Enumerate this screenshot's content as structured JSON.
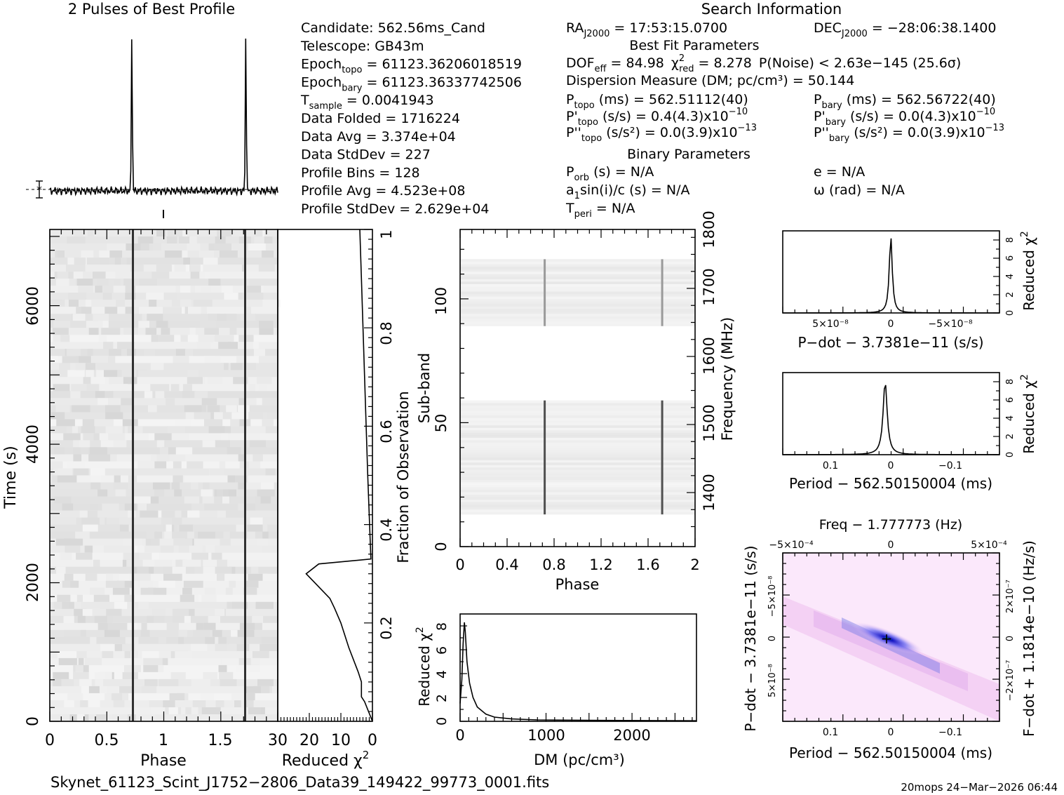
{
  "profile": {
    "title": "2 Pulses of Best Profile",
    "series": {
      "name": "profile",
      "phase": [
        0,
        0.1,
        0.2,
        0.3,
        0.4,
        0.5,
        0.6,
        0.7,
        0.72,
        0.74,
        0.8,
        0.9,
        1.0,
        1.1,
        1.2,
        1.3,
        1.4,
        1.5,
        1.6,
        1.7,
        1.72,
        1.74,
        1.8,
        1.9,
        2.0
      ],
      "rel_amplitude": [
        0.02,
        0.03,
        0.02,
        0.03,
        0.02,
        0.03,
        0.02,
        0.05,
        1.0,
        0.05,
        0.02,
        0.03,
        0.02,
        0.03,
        0.02,
        0.03,
        0.02,
        0.03,
        0.02,
        0.05,
        1.0,
        0.05,
        0.02,
        0.03,
        0.02
      ]
    },
    "pulse_phases": [
      0.72,
      1.72
    ]
  },
  "search_info": {
    "title": "Search Information",
    "col1": [
      [
        "Candidate:  562.56ms_Cand"
      ],
      [
        "Telescope:  GB43m"
      ],
      [
        "Epoch",
        "topo",
        " = 61123.36206018519"
      ],
      [
        "Epoch",
        "bary",
        " = 61123.36337742506"
      ],
      [
        "T",
        "sample",
        "      =  0.0041943"
      ],
      [
        "Data Folded     =  1716224"
      ],
      [
        "Data Avg        =  3.374e+04"
      ],
      [
        "Data StdDev     =  227"
      ],
      [
        "Profile Bins    =  128"
      ],
      [
        "Profile Avg     =  4.523e+08"
      ],
      [
        "Profile StdDev  =  2.629e+04"
      ]
    ],
    "ra": {
      "label": "RA",
      "sub": "J2000",
      "value": " = 17:53:15.0700"
    },
    "dec": {
      "label": "DEC",
      "sub": "J2000",
      "value": " = −28:06:38.1400"
    },
    "best_fit_title": "Best Fit Parameters",
    "dof": {
      "label": "DOF",
      "sub": "eff",
      "value": " = 84.98",
      "chi_label": "χ",
      "chi_sup": "2",
      "chi_sub": "red",
      "chi_value": " = 8.278",
      "pnoise": "P(Noise) < 2.63e−145   (25.6σ)"
    },
    "dm_line": "Dispersion Measure (DM; pc/cm³) = 50.144",
    "ptopo": {
      "label": "P",
      "sub": "topo",
      "value": " (ms) =  562.51112(40)"
    },
    "pbary": {
      "label": "P",
      "sub": "bary",
      "value": " (ms) =  562.56722(40)"
    },
    "pdtopo": {
      "label": "P'",
      "sub": "topo",
      "value": " (s/s) =  0.4(4.3)x10",
      "exp": "−10"
    },
    "pdbary": {
      "label": "P'",
      "sub": "bary",
      "value": " (s/s) = 0.0(4.3)x10",
      "exp": "−10"
    },
    "pddtopo": {
      "label": "P''",
      "sub": "topo",
      "value": " (s/s²) = 0.0(3.9)x10",
      "exp": "−13"
    },
    "pddbary": {
      "label": "P''",
      "sub": "bary",
      "value": " (s/s²) = 0.0(3.9)x10",
      "exp": "−13"
    },
    "binary_title": "Binary Parameters",
    "porb": {
      "label": "P",
      "sub": "orb",
      "value": " (s) = N/A"
    },
    "asini": {
      "label": "a",
      "sub": "1",
      "value": "sin(i)/c (s) = N/A"
    },
    "tperi": {
      "label": "T",
      "sub": "peri",
      "value": " = N/A"
    },
    "ecc": "e = N/A",
    "omega": "ω (rad) = N/A"
  },
  "time_phase": {
    "xlabel": "Phase",
    "ylabel": "Time (s)",
    "xticks": [
      "0",
      "0.5",
      "1",
      "1.5"
    ],
    "yticks": [
      "0",
      "2000",
      "4000",
      "6000"
    ],
    "xlim": [
      0,
      2
    ],
    "ylim": [
      0,
      7100
    ]
  },
  "chi_time": {
    "xlabel": "Reduced χ",
    "xlabel_sup": "2",
    "xticks": [
      "30",
      "20",
      "10",
      "0"
    ],
    "right_label": "Fraction of Observation",
    "rticks": [
      "0.2",
      "0.4",
      "0.6",
      "0.8",
      "1"
    ],
    "fraction": [
      0,
      0.04,
      0.05,
      0.08,
      0.1,
      0.15,
      0.2,
      0.23,
      0.25,
      0.28,
      0.3,
      0.32,
      0.33,
      0.5,
      0.7,
      0.9,
      1.0
    ],
    "redchi": [
      0,
      2.5,
      3.5,
      3.5,
      4.5,
      7.5,
      10,
      12,
      13.5,
      18,
      21,
      17,
      0.5,
      1.5,
      2.5,
      3.5,
      4
    ]
  },
  "subband": {
    "xlabel": "Phase",
    "ylabel": "Sub-band",
    "right_label": "Frequency (MHz)",
    "xticks": [
      "0",
      "0.4",
      "0.8",
      "1.2",
      "1.6",
      "2"
    ],
    "yticks": [
      "0",
      "50",
      "100"
    ],
    "rticks": [
      "1400",
      "1500",
      "1600",
      "1700",
      "1800"
    ],
    "ylim": [
      0,
      128
    ],
    "bands_with_signal": [
      [
        13,
        59
      ],
      [
        89,
        116
      ]
    ]
  },
  "dm_plot": {
    "xlabel": "DM (pc/cm³)",
    "ylabel": "Reduced χ",
    "ylabel_sup": "2",
    "xticks": [
      "0",
      "1000",
      "2000"
    ],
    "yticks": [
      "0",
      "2",
      "4",
      "6",
      "8"
    ],
    "xlim": [
      0,
      2750
    ],
    "ylim": [
      0,
      9
    ],
    "dm": [
      0,
      20,
      35,
      50,
      60,
      80,
      110,
      150,
      200,
      300,
      400,
      600,
      900,
      1500,
      2750
    ],
    "redchi": [
      1.5,
      3.5,
      6.5,
      8.3,
      7.5,
      5,
      3.2,
      2,
      1.2,
      0.6,
      0.35,
      0.2,
      0.12,
      0.08,
      0.05
    ]
  },
  "pdot_plot": {
    "xlabel": "P−dot − 3.7381e−11 (s/s)",
    "ylabel": "Reduced χ",
    "ylabel_sup": "2",
    "xticks": [
      "5×10⁻⁸",
      "0",
      "−5×10⁻⁸"
    ],
    "yticks": [
      "0",
      "2",
      "4",
      "6",
      "8"
    ],
    "ylim": [
      0,
      9
    ]
  },
  "period_plot": {
    "xlabel": "Period − 562.50150004 (ms)",
    "ylabel": "Reduced χ",
    "ylabel_sup": "2",
    "xticks": [
      "0.1",
      "0",
      "−0.1"
    ],
    "yticks": [
      "0",
      "2",
      "4",
      "6",
      "8"
    ],
    "ylim": [
      0,
      9
    ]
  },
  "ppdot": {
    "top_label": "Freq − 1.777773 (Hz)",
    "top_ticks": [
      "−5×10⁻⁴",
      "0",
      "5×10⁻⁴"
    ],
    "xlabel": "Period − 562.50150004 (ms)",
    "xticks": [
      "0.1",
      "0",
      "−0.1"
    ],
    "ylabel": "P−dot − 3.7381e−11 (s/s)",
    "yticks": [
      "−5×10⁻⁸",
      "0",
      "5×10⁻⁸"
    ],
    "right_label": "F−dot + 1.1814e−10 (Hz/s)",
    "rticks": [
      "2×10⁻⁷",
      "0",
      "−2×10⁻⁷"
    ]
  },
  "footer": {
    "filename": "Skynet_61123_Scint_J1752−2806_Data39_149422_99773_0001.fits",
    "stamp": "20mops 24−Mar−2026 06:44"
  },
  "colors": {
    "ink": "#000000",
    "heat_mid": "#3030e0",
    "heat_low": "#f0c0f0",
    "heat_peak": "#00d0a0"
  }
}
